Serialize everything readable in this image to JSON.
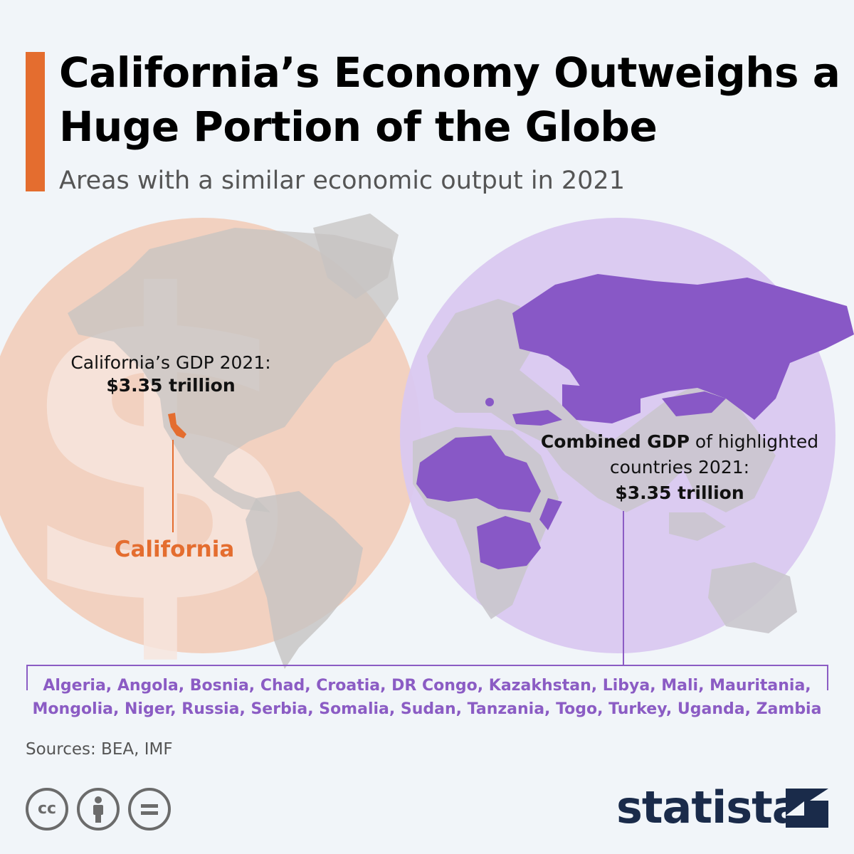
{
  "header": {
    "title": "California’s Economy Outweighs a Huge Portion of the Globe",
    "subtitle": "Areas with a similar economic output in 2021"
  },
  "california": {
    "gdp_label": "California’s GDP",
    "gdp_year": "2021:",
    "gdp_value": "$3.35 trillion",
    "name": "California"
  },
  "combined": {
    "label_bold": "Combined GDP",
    "label_rest": "of highlighted countries 2021:",
    "value": "$3.35 trillion"
  },
  "countries_line1": "Algeria, Angola, Bosnia, Chad, Croatia, DR Congo, Kazakhstan, Libya, Mali, Mauritania,",
  "countries_line2": "Mongolia, Niger, Russia, Serbia, Somalia, Sudan, Tanzania, Togo, Turkey, Uganda, Zambia",
  "footer": {
    "sources": "Sources: BEA, IMF",
    "brand": "statista",
    "license_icons": [
      "cc-icon",
      "attribution-icon",
      "no-derivatives-icon"
    ]
  },
  "colors": {
    "accent": "#e46d2f",
    "purple": "#8b5cc4",
    "land": "#c9c9c9",
    "brand": "#1a2b4a"
  }
}
